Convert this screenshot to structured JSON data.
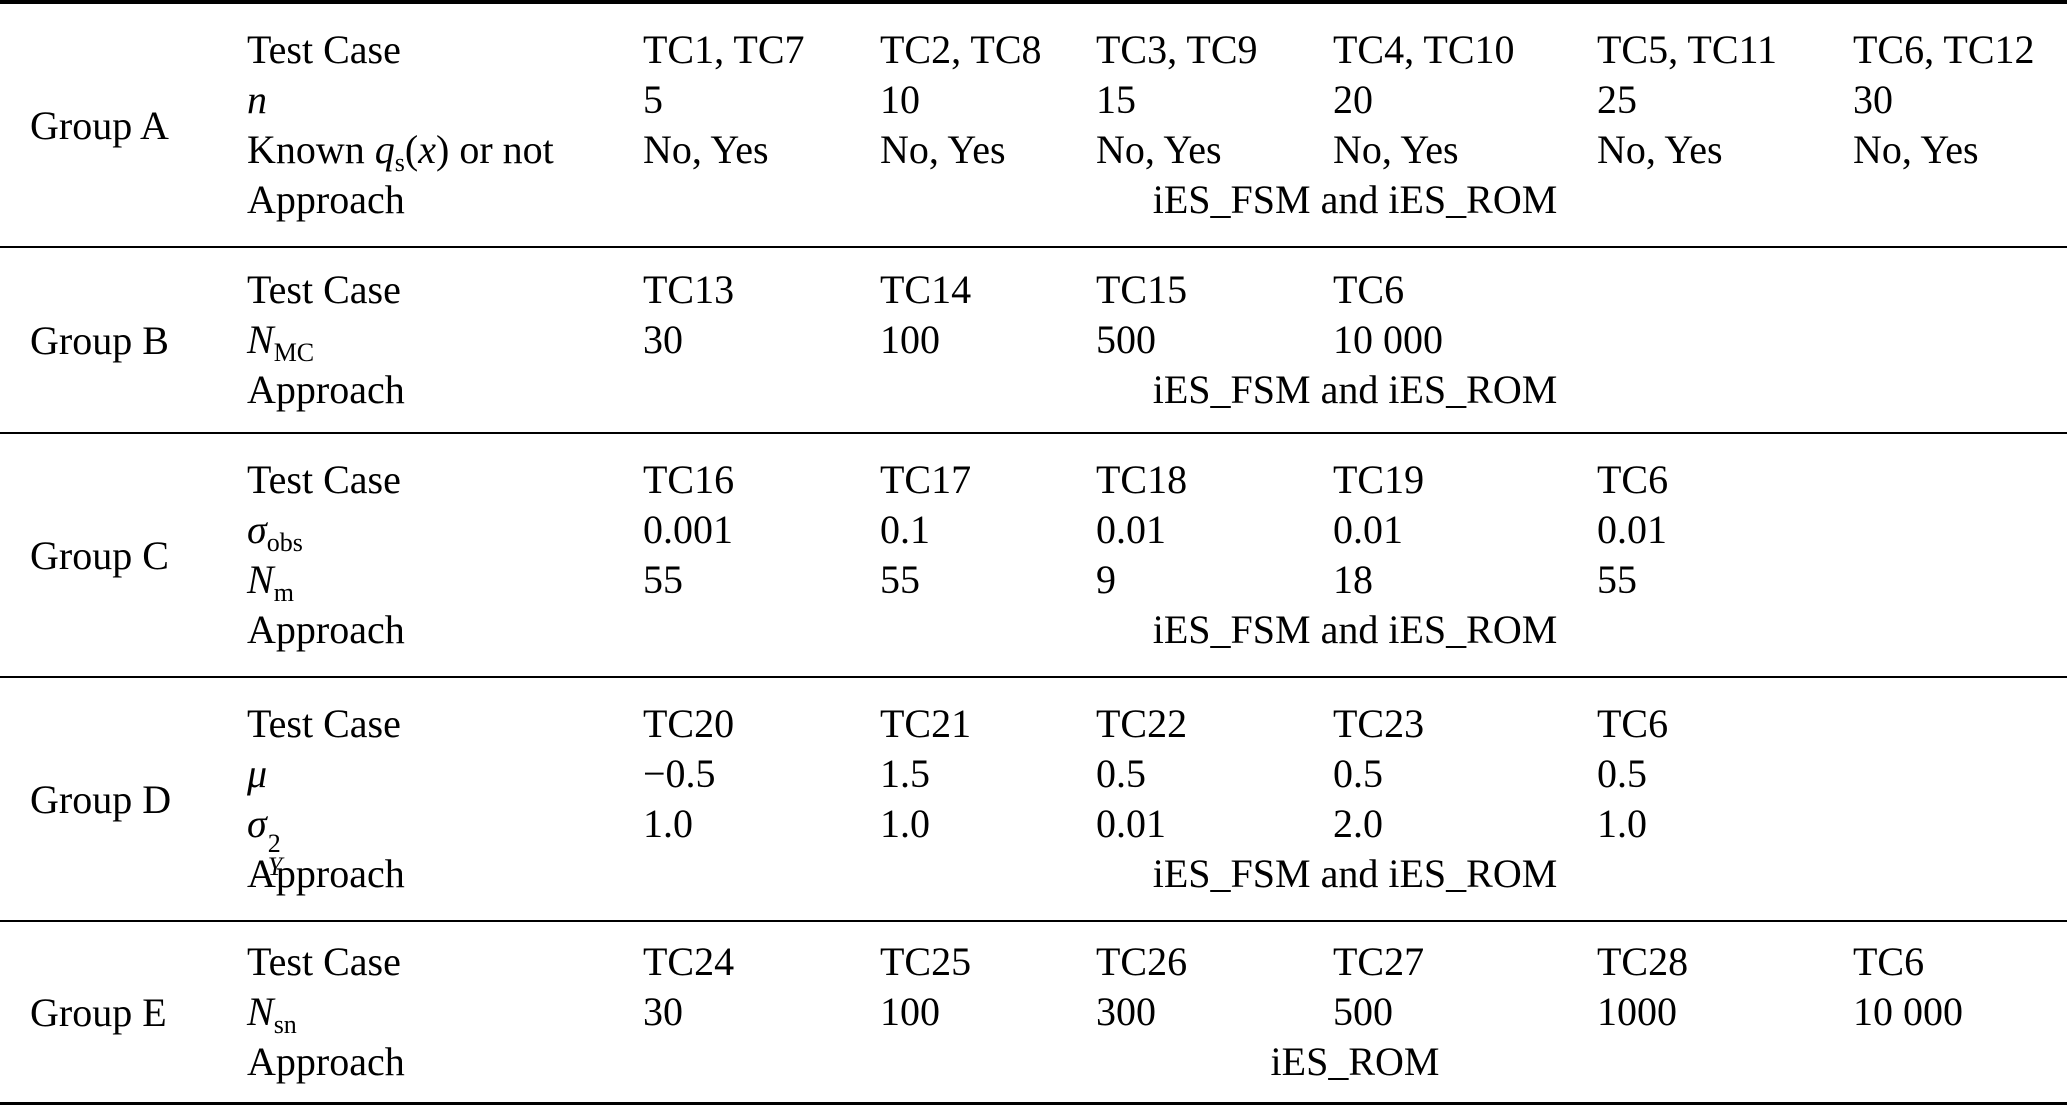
{
  "colors": {
    "text": "#000000",
    "rule": "#000000",
    "background": "#ffffff"
  },
  "table": {
    "groups": [
      {
        "label": "Group A",
        "rows": [
          {
            "label": [
              {
                "t": "Test Case"
              }
            ],
            "cells": [
              "TC1, TC7",
              "TC2, TC8",
              "TC3, TC9",
              "TC4, TC10",
              "TC5, TC11",
              "TC6, TC12"
            ]
          },
          {
            "label": [
              {
                "t": "n",
                "s": "i"
              }
            ],
            "cells": [
              "5",
              "10",
              "15",
              "20",
              "25",
              "30"
            ]
          },
          {
            "label": [
              {
                "t": "Known "
              },
              {
                "t": "q",
                "s": "i"
              },
              {
                "t": "s",
                "s": "sub"
              },
              {
                "t": "("
              },
              {
                "t": "x",
                "s": "i"
              },
              {
                "t": ") or not"
              }
            ],
            "cells": [
              "No, Yes",
              "No, Yes",
              "No, Yes",
              "No, Yes",
              "No, Yes",
              "No, Yes"
            ]
          },
          {
            "label": [
              {
                "t": "Approach"
              }
            ],
            "span": "iES_FSM and iES_ROM"
          }
        ]
      },
      {
        "label": "Group B",
        "rows": [
          {
            "label": [
              {
                "t": "Test Case"
              }
            ],
            "cells": [
              "TC13",
              "TC14",
              "TC15",
              "TC6"
            ]
          },
          {
            "label": [
              {
                "t": "N",
                "s": "i"
              },
              {
                "t": "MC",
                "s": "sub"
              }
            ],
            "cells": [
              "30",
              "100",
              "500",
              "10 000"
            ]
          },
          {
            "label": [
              {
                "t": "Approach"
              }
            ],
            "span": "iES_FSM and iES_ROM"
          }
        ]
      },
      {
        "label": "Group C",
        "rows": [
          {
            "label": [
              {
                "t": "Test Case"
              }
            ],
            "cells": [
              "TC16",
              "TC17",
              "TC18",
              "TC19",
              "TC6"
            ]
          },
          {
            "label": [
              {
                "t": "σ",
                "s": "i"
              },
              {
                "t": "obs",
                "s": "sub"
              }
            ],
            "cells": [
              "0.001",
              "0.1",
              "0.01",
              "0.01",
              "0.01"
            ]
          },
          {
            "label": [
              {
                "t": "N",
                "s": "i"
              },
              {
                "t": "m",
                "s": "sub"
              }
            ],
            "cells": [
              "55",
              "55",
              "9",
              "18",
              "55"
            ]
          },
          {
            "label": [
              {
                "t": "Approach"
              }
            ],
            "span": "iES_FSM and iES_ROM"
          }
        ]
      },
      {
        "label": "Group D",
        "rows": [
          {
            "label": [
              {
                "t": "Test Case"
              }
            ],
            "cells": [
              "TC20",
              "TC21",
              "TC22",
              "TC23",
              "TC6"
            ]
          },
          {
            "label": [
              {
                "t": "μ",
                "s": "i"
              }
            ],
            "cells": [
              "−0.5",
              "1.5",
              "0.5",
              "0.5",
              "0.5"
            ]
          },
          {
            "label": [
              {
                "t": "σ",
                "s": "i"
              },
              {
                "s": "stack",
                "sup": "2",
                "sub": "Y"
              }
            ],
            "cells": [
              "1.0",
              "1.0",
              "0.01",
              "2.0",
              "1.0"
            ]
          },
          {
            "label": [
              {
                "t": "Approach"
              }
            ],
            "span": "iES_FSM and iES_ROM"
          }
        ]
      },
      {
        "label": "Group E",
        "rows": [
          {
            "label": [
              {
                "t": "Test Case"
              }
            ],
            "cells": [
              "TC24",
              "TC25",
              "TC26",
              "TC27",
              "TC28",
              "TC6"
            ]
          },
          {
            "label": [
              {
                "t": "N",
                "s": "i"
              },
              {
                "t": "sn",
                "s": "sub"
              }
            ],
            "cells": [
              "30",
              "100",
              "300",
              "500",
              "1000",
              "10 000"
            ]
          },
          {
            "label": [
              {
                "t": "Approach"
              }
            ],
            "span": "iES_ROM"
          }
        ]
      }
    ]
  }
}
